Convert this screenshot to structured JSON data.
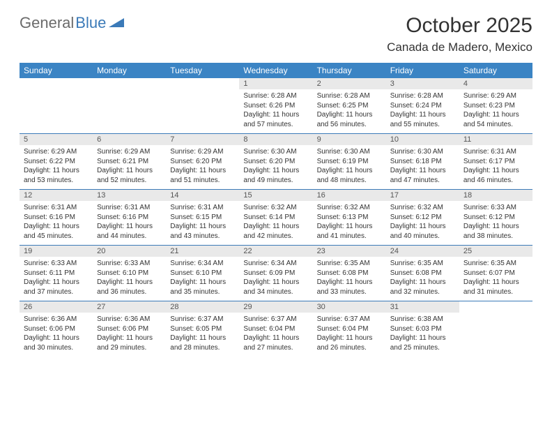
{
  "logo": {
    "word1": "General",
    "word2": "Blue"
  },
  "title": {
    "month": "October 2025",
    "location": "Canada de Madero, Mexico"
  },
  "colors": {
    "header_bg": "#3b84c4",
    "row_divider": "#3b7ab8",
    "daynum_bg": "#e9e9e9",
    "text": "#333333",
    "logo_gray": "#6b6b6b",
    "logo_blue": "#3b7ab8"
  },
  "day_headers": [
    "Sunday",
    "Monday",
    "Tuesday",
    "Wednesday",
    "Thursday",
    "Friday",
    "Saturday"
  ],
  "weeks": [
    [
      {
        "n": "",
        "lines": []
      },
      {
        "n": "",
        "lines": []
      },
      {
        "n": "",
        "lines": []
      },
      {
        "n": "1",
        "lines": [
          "Sunrise: 6:28 AM",
          "Sunset: 6:26 PM",
          "Daylight: 11 hours",
          "and 57 minutes."
        ]
      },
      {
        "n": "2",
        "lines": [
          "Sunrise: 6:28 AM",
          "Sunset: 6:25 PM",
          "Daylight: 11 hours",
          "and 56 minutes."
        ]
      },
      {
        "n": "3",
        "lines": [
          "Sunrise: 6:28 AM",
          "Sunset: 6:24 PM",
          "Daylight: 11 hours",
          "and 55 minutes."
        ]
      },
      {
        "n": "4",
        "lines": [
          "Sunrise: 6:29 AM",
          "Sunset: 6:23 PM",
          "Daylight: 11 hours",
          "and 54 minutes."
        ]
      }
    ],
    [
      {
        "n": "5",
        "lines": [
          "Sunrise: 6:29 AM",
          "Sunset: 6:22 PM",
          "Daylight: 11 hours",
          "and 53 minutes."
        ]
      },
      {
        "n": "6",
        "lines": [
          "Sunrise: 6:29 AM",
          "Sunset: 6:21 PM",
          "Daylight: 11 hours",
          "and 52 minutes."
        ]
      },
      {
        "n": "7",
        "lines": [
          "Sunrise: 6:29 AM",
          "Sunset: 6:20 PM",
          "Daylight: 11 hours",
          "and 51 minutes."
        ]
      },
      {
        "n": "8",
        "lines": [
          "Sunrise: 6:30 AM",
          "Sunset: 6:20 PM",
          "Daylight: 11 hours",
          "and 49 minutes."
        ]
      },
      {
        "n": "9",
        "lines": [
          "Sunrise: 6:30 AM",
          "Sunset: 6:19 PM",
          "Daylight: 11 hours",
          "and 48 minutes."
        ]
      },
      {
        "n": "10",
        "lines": [
          "Sunrise: 6:30 AM",
          "Sunset: 6:18 PM",
          "Daylight: 11 hours",
          "and 47 minutes."
        ]
      },
      {
        "n": "11",
        "lines": [
          "Sunrise: 6:31 AM",
          "Sunset: 6:17 PM",
          "Daylight: 11 hours",
          "and 46 minutes."
        ]
      }
    ],
    [
      {
        "n": "12",
        "lines": [
          "Sunrise: 6:31 AM",
          "Sunset: 6:16 PM",
          "Daylight: 11 hours",
          "and 45 minutes."
        ]
      },
      {
        "n": "13",
        "lines": [
          "Sunrise: 6:31 AM",
          "Sunset: 6:16 PM",
          "Daylight: 11 hours",
          "and 44 minutes."
        ]
      },
      {
        "n": "14",
        "lines": [
          "Sunrise: 6:31 AM",
          "Sunset: 6:15 PM",
          "Daylight: 11 hours",
          "and 43 minutes."
        ]
      },
      {
        "n": "15",
        "lines": [
          "Sunrise: 6:32 AM",
          "Sunset: 6:14 PM",
          "Daylight: 11 hours",
          "and 42 minutes."
        ]
      },
      {
        "n": "16",
        "lines": [
          "Sunrise: 6:32 AM",
          "Sunset: 6:13 PM",
          "Daylight: 11 hours",
          "and 41 minutes."
        ]
      },
      {
        "n": "17",
        "lines": [
          "Sunrise: 6:32 AM",
          "Sunset: 6:12 PM",
          "Daylight: 11 hours",
          "and 40 minutes."
        ]
      },
      {
        "n": "18",
        "lines": [
          "Sunrise: 6:33 AM",
          "Sunset: 6:12 PM",
          "Daylight: 11 hours",
          "and 38 minutes."
        ]
      }
    ],
    [
      {
        "n": "19",
        "lines": [
          "Sunrise: 6:33 AM",
          "Sunset: 6:11 PM",
          "Daylight: 11 hours",
          "and 37 minutes."
        ]
      },
      {
        "n": "20",
        "lines": [
          "Sunrise: 6:33 AM",
          "Sunset: 6:10 PM",
          "Daylight: 11 hours",
          "and 36 minutes."
        ]
      },
      {
        "n": "21",
        "lines": [
          "Sunrise: 6:34 AM",
          "Sunset: 6:10 PM",
          "Daylight: 11 hours",
          "and 35 minutes."
        ]
      },
      {
        "n": "22",
        "lines": [
          "Sunrise: 6:34 AM",
          "Sunset: 6:09 PM",
          "Daylight: 11 hours",
          "and 34 minutes."
        ]
      },
      {
        "n": "23",
        "lines": [
          "Sunrise: 6:35 AM",
          "Sunset: 6:08 PM",
          "Daylight: 11 hours",
          "and 33 minutes."
        ]
      },
      {
        "n": "24",
        "lines": [
          "Sunrise: 6:35 AM",
          "Sunset: 6:08 PM",
          "Daylight: 11 hours",
          "and 32 minutes."
        ]
      },
      {
        "n": "25",
        "lines": [
          "Sunrise: 6:35 AM",
          "Sunset: 6:07 PM",
          "Daylight: 11 hours",
          "and 31 minutes."
        ]
      }
    ],
    [
      {
        "n": "26",
        "lines": [
          "Sunrise: 6:36 AM",
          "Sunset: 6:06 PM",
          "Daylight: 11 hours",
          "and 30 minutes."
        ]
      },
      {
        "n": "27",
        "lines": [
          "Sunrise: 6:36 AM",
          "Sunset: 6:06 PM",
          "Daylight: 11 hours",
          "and 29 minutes."
        ]
      },
      {
        "n": "28",
        "lines": [
          "Sunrise: 6:37 AM",
          "Sunset: 6:05 PM",
          "Daylight: 11 hours",
          "and 28 minutes."
        ]
      },
      {
        "n": "29",
        "lines": [
          "Sunrise: 6:37 AM",
          "Sunset: 6:04 PM",
          "Daylight: 11 hours",
          "and 27 minutes."
        ]
      },
      {
        "n": "30",
        "lines": [
          "Sunrise: 6:37 AM",
          "Sunset: 6:04 PM",
          "Daylight: 11 hours",
          "and 26 minutes."
        ]
      },
      {
        "n": "31",
        "lines": [
          "Sunrise: 6:38 AM",
          "Sunset: 6:03 PM",
          "Daylight: 11 hours",
          "and 25 minutes."
        ]
      },
      {
        "n": "",
        "lines": []
      }
    ]
  ]
}
